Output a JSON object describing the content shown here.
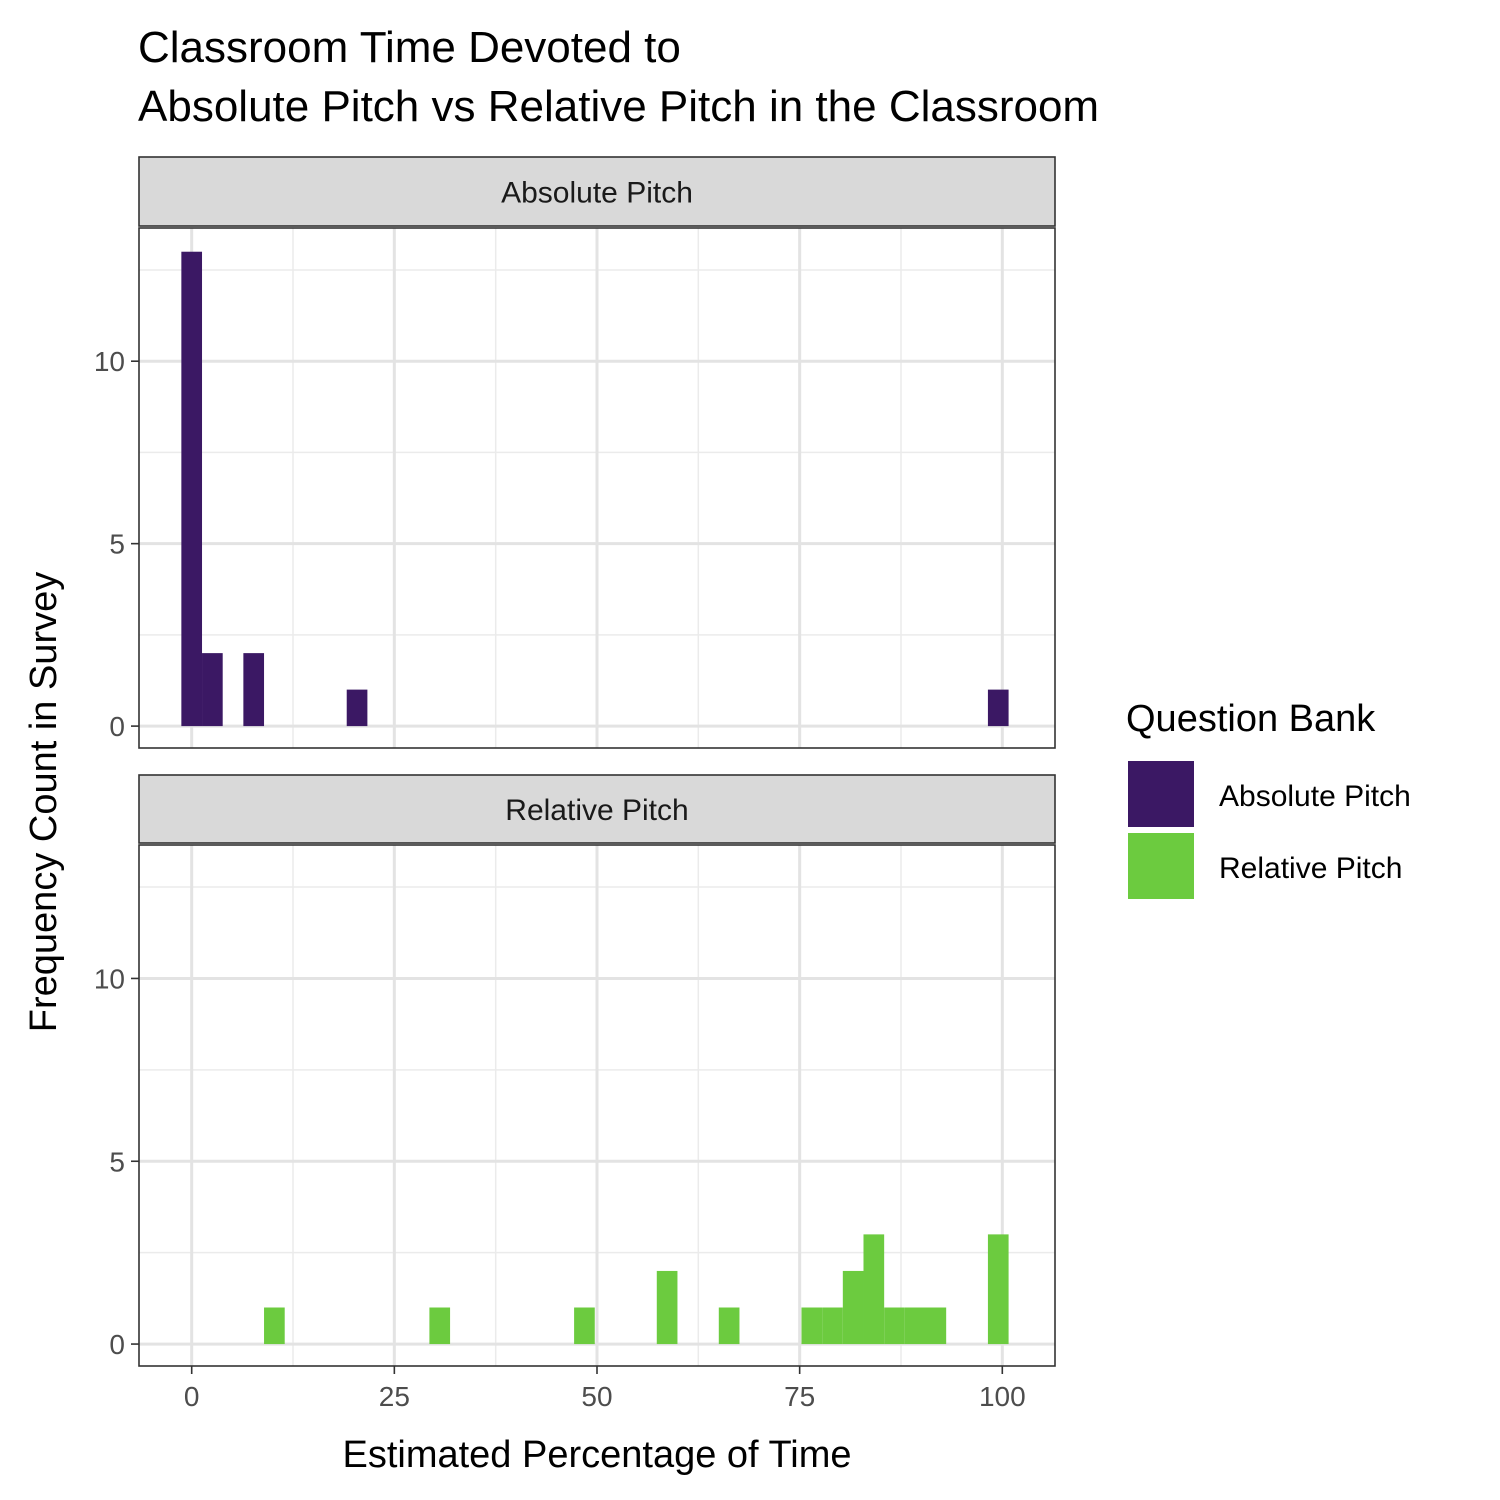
{
  "chart_data": {
    "type": "bar",
    "title": [
      "Classroom Time Devoted to",
      "Absolute Pitch vs Relative Pitch in the Classroom"
    ],
    "xlabel": "Estimated Percentage of Time",
    "ylabel": "Frequency Count in Survey",
    "xlim": [
      -6.5,
      106.5
    ],
    "ylim": [
      -0.6,
      13.65
    ],
    "x_ticks": [
      0,
      25,
      50,
      75,
      100
    ],
    "y_ticks": [
      0,
      5,
      10
    ],
    "bin_width": 2.55,
    "grid": true,
    "legend": {
      "title": "Question Bank",
      "position": "right",
      "entries": [
        {
          "label": "Absolute Pitch",
          "color": "#3b1864"
        },
        {
          "label": "Relative Pitch",
          "color": "#6ccb3f"
        }
      ]
    },
    "panels": [
      {
        "strip": "Absolute Pitch",
        "color": "#3b1864",
        "bins": [
          {
            "x": 0.0,
            "count": 13
          },
          {
            "x": 2.55,
            "count": 2
          },
          {
            "x": 7.65,
            "count": 2
          },
          {
            "x": 20.4,
            "count": 1
          },
          {
            "x": 99.5,
            "count": 1
          }
        ]
      },
      {
        "strip": "Relative Pitch",
        "color": "#6ccb3f",
        "bins": [
          {
            "x": 10.2,
            "count": 1
          },
          {
            "x": 30.6,
            "count": 1
          },
          {
            "x": 48.45,
            "count": 1
          },
          {
            "x": 58.65,
            "count": 2
          },
          {
            "x": 66.3,
            "count": 1
          },
          {
            "x": 76.5,
            "count": 1
          },
          {
            "x": 79.05,
            "count": 1
          },
          {
            "x": 81.6,
            "count": 2
          },
          {
            "x": 84.15,
            "count": 3
          },
          {
            "x": 86.7,
            "count": 1
          },
          {
            "x": 89.25,
            "count": 1
          },
          {
            "x": 91.8,
            "count": 1
          },
          {
            "x": 99.5,
            "count": 3
          }
        ]
      }
    ]
  }
}
